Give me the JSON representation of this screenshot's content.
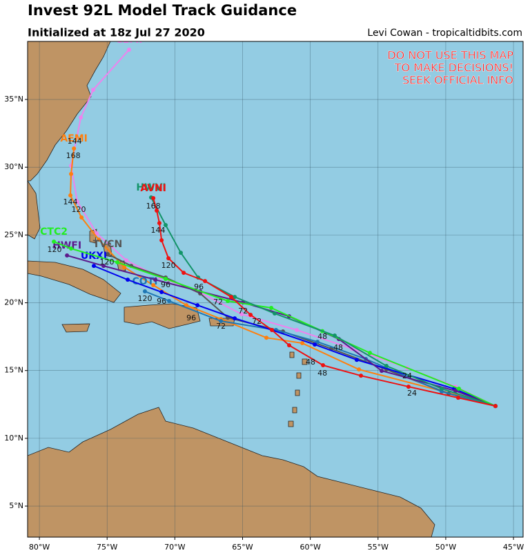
{
  "chart_data": {
    "type": "map",
    "title": "Invest 92L Model Track Guidance",
    "subtitle": "Initialized at 18z Jul 27 2020",
    "credit": "Levi Cowan - tropicaltidbits.com",
    "warning": [
      "DO NOT USE THIS MAP",
      "TO MAKE DECISIONS!",
      "SEEK OFFICIAL INFO"
    ],
    "xlim": [
      -80.87,
      -44.29
    ],
    "ylim": [
      2.71,
      39.28
    ],
    "xticks": [
      {
        "value": -80,
        "label": "80°W"
      },
      {
        "value": -75,
        "label": "75°W"
      },
      {
        "value": -70,
        "label": "70°W"
      },
      {
        "value": -65,
        "label": "65°W"
      },
      {
        "value": -60,
        "label": "60°W"
      },
      {
        "value": -55,
        "label": "55°W"
      },
      {
        "value": -50,
        "label": "50°W"
      },
      {
        "value": -45,
        "label": "45°W"
      }
    ],
    "yticks": [
      {
        "value": 5,
        "label": "5°N"
      },
      {
        "value": 10,
        "label": "10°N"
      },
      {
        "value": 15,
        "label": "15°N"
      },
      {
        "value": 20,
        "label": "20°N"
      },
      {
        "value": 25,
        "label": "25°N"
      },
      {
        "value": 30,
        "label": "30°N"
      },
      {
        "value": 35,
        "label": "35°N"
      }
    ],
    "grid": true,
    "series": [
      {
        "name": "CEMI",
        "color": "#ee82ee",
        "x": [
          -46.33,
          -49.28,
          -52.85,
          -56.92,
          -61.0,
          -65.07,
          -68.49,
          -71.09,
          -73.58,
          -75.77,
          -77.2,
          -77.66,
          -76.94,
          -76.03,
          -73.38
        ],
        "values": [
          12.38,
          13.81,
          15.19,
          16.61,
          17.99,
          19.16,
          20.94,
          21.86,
          23.13,
          25.12,
          27.46,
          30.11,
          33.67,
          35.71,
          38.67
        ]
      },
      {
        "name": "AEMI",
        "color": "#ff7f0e",
        "x": [
          -46.33,
          -49.18,
          -56.41,
          -60.59,
          -63.24,
          -66.6,
          -69.15,
          -71.59,
          -73.73,
          -75.62,
          -76.89,
          -77.71,
          -77.66,
          -77.45
        ],
        "values": [
          12.38,
          13.2,
          15.08,
          17.02,
          17.42,
          18.8,
          19.82,
          21.3,
          22.62,
          24.66,
          26.29,
          27.92,
          29.5,
          31.38
        ]
      },
      {
        "name": "TVCN",
        "color": "#555555",
        "x": [
          -46.33,
          -49.79,
          -54.38,
          -58.45,
          -62.02,
          -66.09,
          -68.13,
          -70.68,
          -73.22,
          -74.96
        ],
        "values": [
          12.38,
          13.3,
          15.08,
          16.61,
          17.88,
          18.9,
          20.69,
          21.86,
          22.72,
          23.59
        ]
      },
      {
        "name": "COTI",
        "color": "#1f77b4",
        "x": [
          -46.33,
          -50.3,
          -55.9,
          -59.47,
          -62.53,
          -66.6,
          -70.42,
          -72.21
        ],
        "values": [
          12.38,
          13.45,
          15.85,
          17.12,
          17.99,
          18.65,
          20.13,
          20.84
        ]
      },
      {
        "name": "UKXI",
        "color": "#0000ee",
        "x": [
          -46.33,
          -49.38,
          -56.57,
          -59.67,
          -62.83,
          -65.58,
          -68.33,
          -70.98,
          -73.48,
          -75.98
        ],
        "values": [
          12.38,
          13.66,
          15.79,
          16.92,
          17.99,
          18.85,
          19.82,
          20.79,
          21.7,
          22.72
        ]
      },
      {
        "name": "HWFI",
        "color": "#5c1a8c",
        "x": [
          -46.33,
          -49.28,
          -54.73,
          -57.89,
          -61.56,
          -64.97,
          -68.13,
          -71.44,
          -75.26,
          -77.96
        ],
        "values": [
          12.38,
          13.5,
          14.98,
          17.32,
          19.0,
          20.02,
          20.84,
          21.7,
          22.72,
          23.49
        ]
      },
      {
        "name": "CTC2",
        "color": "#22ee22",
        "x": [
          -46.33,
          -49.03,
          -55.6,
          -59.11,
          -62.88,
          -66.09,
          -70.68,
          -74.24,
          -77.66,
          -78.93
        ],
        "values": [
          12.38,
          13.66,
          16.3,
          17.91,
          19.62,
          20.13,
          21.76,
          22.98,
          24.0,
          24.51
        ]
      },
      {
        "name": "HWVI",
        "color": "#139469",
        "x": [
          -46.33,
          -50.3,
          -54.38,
          -58.2,
          -62.63,
          -65.58,
          -68.28,
          -69.56,
          -70.68,
          -71.75
        ],
        "values": [
          12.38,
          13.66,
          15.34,
          17.58,
          19.21,
          20.43,
          21.86,
          23.69,
          25.73,
          27.77
        ]
      },
      {
        "name": "AVNI",
        "color": "#ee1111",
        "x": [
          -46.33,
          -49.08,
          -52.75,
          -56.26,
          -59.06,
          -61.56,
          -62.83,
          -64.41,
          -65.84,
          -67.77,
          -69.35,
          -70.47,
          -70.98,
          -71.14,
          -71.34,
          -71.59
        ],
        "values": [
          12.38,
          12.99,
          13.81,
          14.62,
          15.39,
          16.86,
          17.99,
          19.11,
          20.43,
          21.6,
          22.21,
          23.28,
          24.61,
          25.88,
          26.8,
          27.72
        ]
      }
    ],
    "hour_labels": [
      {
        "text": "24",
        "x": -52.85,
        "y": 14.57
      },
      {
        "text": "24",
        "x": -52.49,
        "y": 13.3
      },
      {
        "text": "48",
        "x": -59.11,
        "y": 17.48
      },
      {
        "text": "48",
        "x": -59.98,
        "y": 15.59
      },
      {
        "text": "48",
        "x": -59.11,
        "y": 14.78
      },
      {
        "text": "48",
        "x": -57.94,
        "y": 16.66
      },
      {
        "text": "72",
        "x": -64.97,
        "y": 19.36
      },
      {
        "text": "72",
        "x": -63.95,
        "y": 18.6
      },
      {
        "text": "72",
        "x": -66.6,
        "y": 18.24
      },
      {
        "text": "72",
        "x": -66.81,
        "y": 20.02
      },
      {
        "text": "96",
        "x": -68.23,
        "y": 21.14
      },
      {
        "text": "96",
        "x": -70.68,
        "y": 21.3
      },
      {
        "text": "96",
        "x": -70.98,
        "y": 20.07
      },
      {
        "text": "96",
        "x": -68.79,
        "y": 18.85
      },
      {
        "text": "120",
        "x": -70.47,
        "y": 22.72
      },
      {
        "text": "120",
        "x": -72.21,
        "y": 20.28
      },
      {
        "text": "120",
        "x": -75.01,
        "y": 22.98
      },
      {
        "text": "120",
        "x": -78.88,
        "y": 23.89
      },
      {
        "text": "120",
        "x": -77.1,
        "y": 26.85
      },
      {
        "text": "144",
        "x": -71.24,
        "y": 25.32
      },
      {
        "text": "144",
        "x": -77.71,
        "y": 27.41
      },
      {
        "text": "144",
        "x": -77.4,
        "y": 31.89
      },
      {
        "text": "168",
        "x": -71.59,
        "y": 27.1
      },
      {
        "text": "168",
        "x": -77.5,
        "y": 30.82
      }
    ]
  }
}
